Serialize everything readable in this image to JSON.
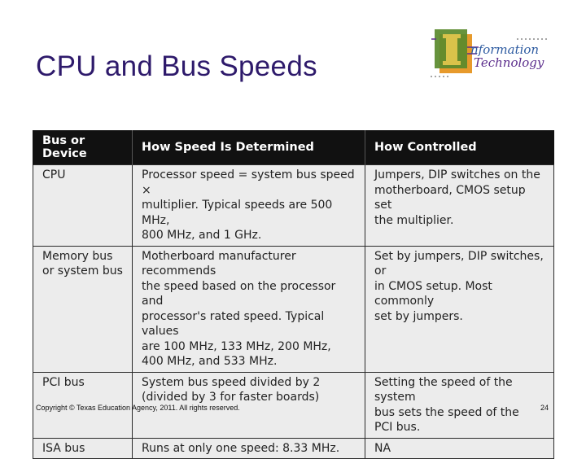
{
  "slide": {
    "title": "CPU and Bus Speeds",
    "footer": "Copyright © Texas Education Agency, 2011. All rights reserved.",
    "page_number": "24"
  },
  "logo": {
    "word1": "nformation",
    "word2": "Technology",
    "colors": {
      "green": "#5a8a2c",
      "orange": "#e79a2c",
      "purple": "#5b2d8c",
      "blue": "#2c5aa0"
    }
  },
  "table": {
    "headers": [
      "Bus or Device",
      "How Speed Is Determined",
      "How Controlled"
    ],
    "rows": [
      {
        "device": [
          "CPU"
        ],
        "speed": [
          "Processor speed = system bus speed ×",
          "multiplier. Typical speeds are 500 MHz,",
          "800 MHz, and 1 GHz."
        ],
        "control": [
          "Jumpers, DIP switches on the",
          "motherboard, CMOS setup set",
          "the multiplier."
        ]
      },
      {
        "device": [
          "Memory bus",
          "or system bus"
        ],
        "speed": [
          "Motherboard manufacturer recommends",
          "the speed based on the processor and",
          "processor's rated speed. Typical values",
          "are 100 MHz, 133 MHz, 200 MHz,",
          "400 MHz, and 533 MHz."
        ],
        "control": [
          "Set by jumpers, DIP switches, or",
          "in CMOS setup. Most commonly",
          "set by jumpers."
        ]
      },
      {
        "device": [
          "PCI bus"
        ],
        "speed": [
          "System bus speed divided by 2",
          "(divided by 3 for faster boards)"
        ],
        "control": [
          "Setting the speed of the system",
          "bus sets the speed of the",
          "PCI bus."
        ]
      },
      {
        "device": [
          "ISA bus"
        ],
        "speed": [
          "Runs at only one speed: 8.33 MHz."
        ],
        "control": [
          "NA"
        ]
      }
    ]
  }
}
